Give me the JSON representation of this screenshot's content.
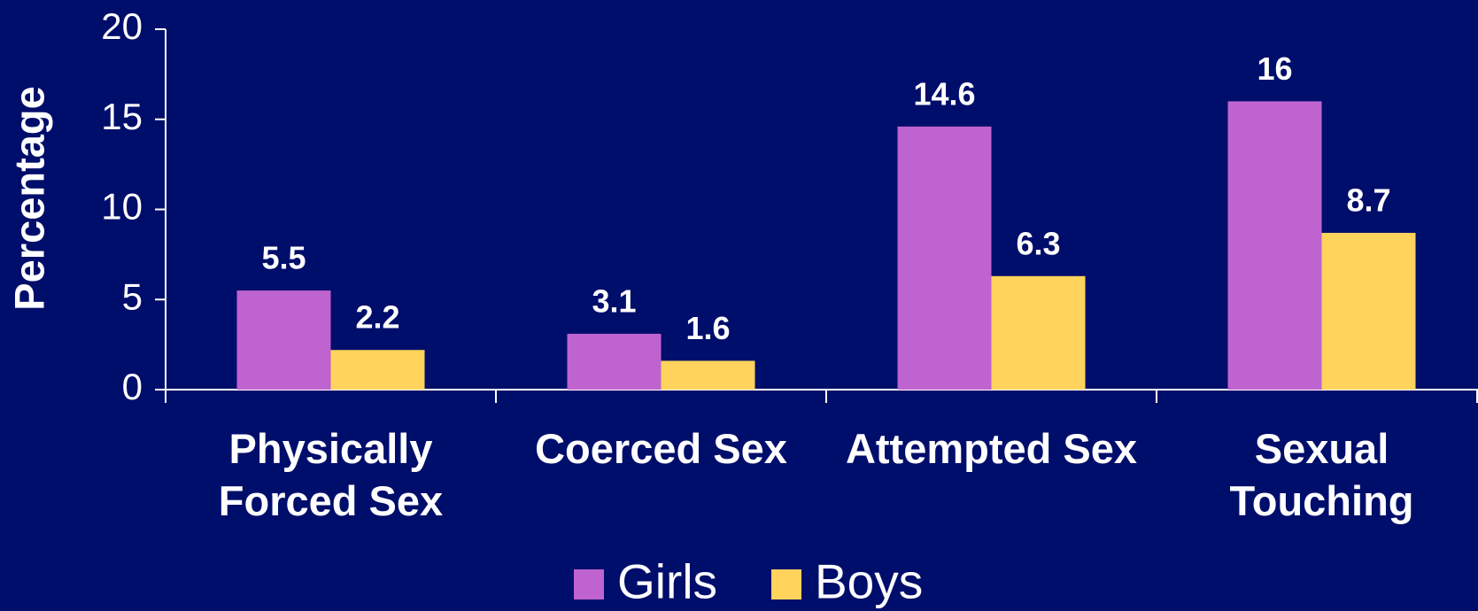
{
  "chart_data": {
    "type": "bar",
    "y_axis_label": "Percentage",
    "categories": [
      "Physically Forced Sex",
      "Coerced Sex",
      "Attempted Sex",
      "Sexual Touching"
    ],
    "series": [
      {
        "name": "Girls",
        "color": "#bf63d0",
        "values": [
          5.5,
          3.1,
          14.6,
          16
        ]
      },
      {
        "name": "Boys",
        "color": "#ffd35c",
        "values": [
          2.2,
          1.6,
          6.3,
          8.7
        ]
      }
    ],
    "ylim": [
      0,
      20
    ],
    "yticks": [
      0,
      5,
      10,
      15,
      20
    ],
    "grid": false,
    "legend": "bottom"
  }
}
